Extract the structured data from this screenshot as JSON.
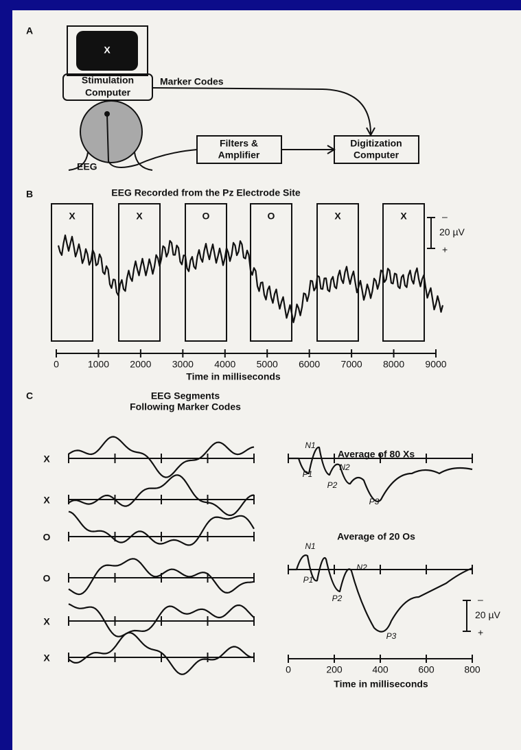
{
  "panel_a": {
    "label": "A",
    "monitor_symbol": "X",
    "stimulation_computer": [
      "Stimulation",
      "Computer"
    ],
    "marker_codes": "Marker Codes",
    "eeg": "EEG",
    "filters": [
      "Filters &",
      "Amplifier"
    ],
    "digitization": [
      "Digitization",
      "Computer"
    ]
  },
  "panel_b": {
    "label": "B",
    "title": "EEG Recorded from the Pz Electrode Site",
    "markers": [
      "X",
      "X",
      "O",
      "O",
      "X",
      "X"
    ],
    "scale": "20 µV",
    "scale_minus": "–",
    "scale_plus": "+",
    "x_ticks": [
      0,
      1000,
      2000,
      3000,
      4000,
      5000,
      6000,
      7000,
      8000,
      9000
    ],
    "x_label": "Time in milliseconds"
  },
  "panel_c": {
    "label": "C",
    "title": [
      "EEG Segments",
      "Following Marker Codes"
    ],
    "segment_labels": [
      "X",
      "X",
      "O",
      "O",
      "X",
      "X"
    ],
    "average_xs": {
      "title": "Average of 80 Xs",
      "peaks": [
        "N1",
        "P1",
        "N2",
        "P2",
        "P3"
      ]
    },
    "average_os": {
      "title": "Average of 20 Os",
      "peaks": [
        "N1",
        "P1",
        "N2",
        "P2",
        "P3"
      ]
    },
    "scale": "20 µV",
    "scale_minus": "–",
    "scale_plus": "+",
    "x_ticks": [
      0,
      200,
      400,
      600,
      800
    ],
    "x_label": "Time in milliseconds"
  }
}
